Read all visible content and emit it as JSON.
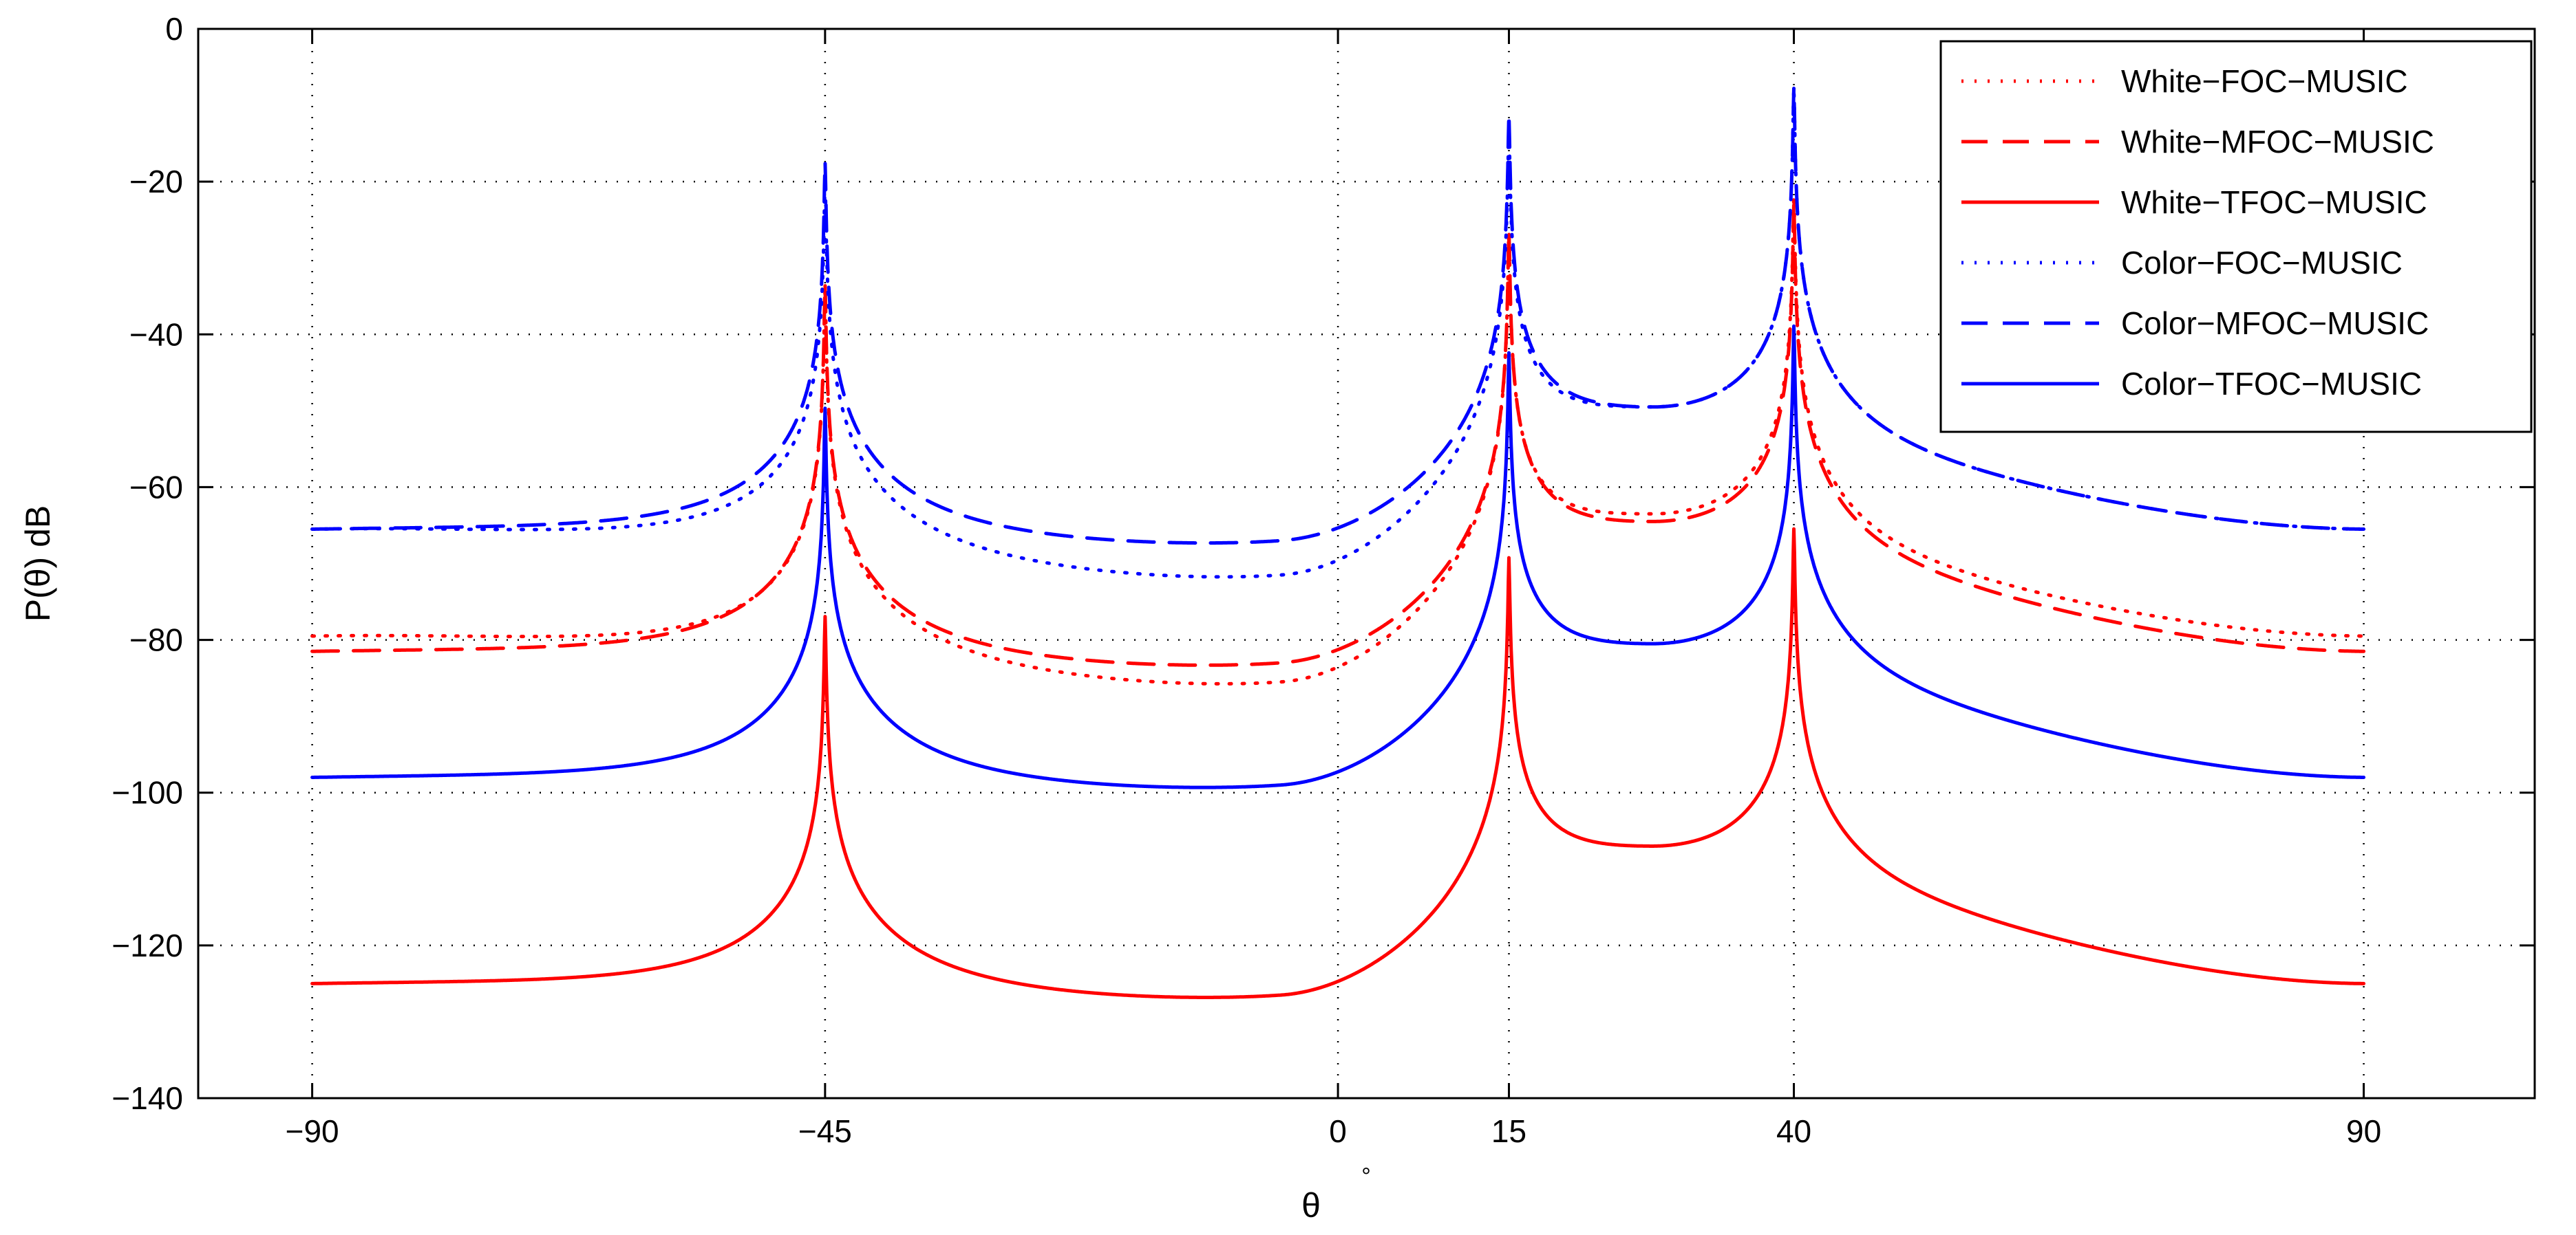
{
  "chart_data": {
    "type": "line",
    "xlabel": "θ",
    "xlabel_unit": "°",
    "ylabel": "P(θ)   dB",
    "xlim": [
      -100,
      105
    ],
    "ylim": [
      -140,
      0
    ],
    "xticks": [
      -90,
      -45,
      0,
      15,
      40,
      90
    ],
    "yticks": [
      0,
      -20,
      -40,
      -60,
      -80,
      -100,
      -120,
      -140
    ],
    "grid": true,
    "legend_position": "top-right",
    "peaks": [
      -45,
      15,
      40
    ],
    "x_range": [
      -90,
      90
    ],
    "series": [
      {
        "name": "White−FOC−MUSIC",
        "color": "#ff0000",
        "dash": "dotted",
        "valley_levels": {
          "edge_left": -79.5,
          "between_1_2": -85.5,
          "between_2_3": -63.5,
          "edge_right": -79.5
        }
      },
      {
        "name": "White−MFOC−MUSIC",
        "color": "#ff0000",
        "dash": "dashed",
        "valley_levels": {
          "edge_left": -81.5,
          "between_1_2": -83,
          "between_2_3": -64.5,
          "edge_right": -81.5
        }
      },
      {
        "name": "White−TFOC−MUSIC",
        "color": "#ff0000",
        "dash": "solid",
        "valley_levels": {
          "edge_left": -125,
          "between_1_2": -126.5,
          "between_2_3": -107,
          "edge_right": -125
        }
      },
      {
        "name": "Color−FOC−MUSIC",
        "color": "#0000ff",
        "dash": "dotted",
        "valley_levels": {
          "edge_left": -65.5,
          "between_1_2": -71.5,
          "between_2_3": -49.5,
          "edge_right": -65.5
        }
      },
      {
        "name": "Color−MFOC−MUSIC",
        "color": "#0000ff",
        "dash": "dashed",
        "valley_levels": {
          "edge_left": -65.5,
          "between_1_2": -67,
          "between_2_3": -49.5,
          "edge_right": -65.5
        }
      },
      {
        "name": "Color−TFOC−MUSIC",
        "color": "#0000ff",
        "dash": "solid",
        "valley_levels": {
          "edge_left": -98,
          "between_1_2": -99,
          "between_2_3": -80.5,
          "edge_right": -98
        }
      }
    ]
  }
}
